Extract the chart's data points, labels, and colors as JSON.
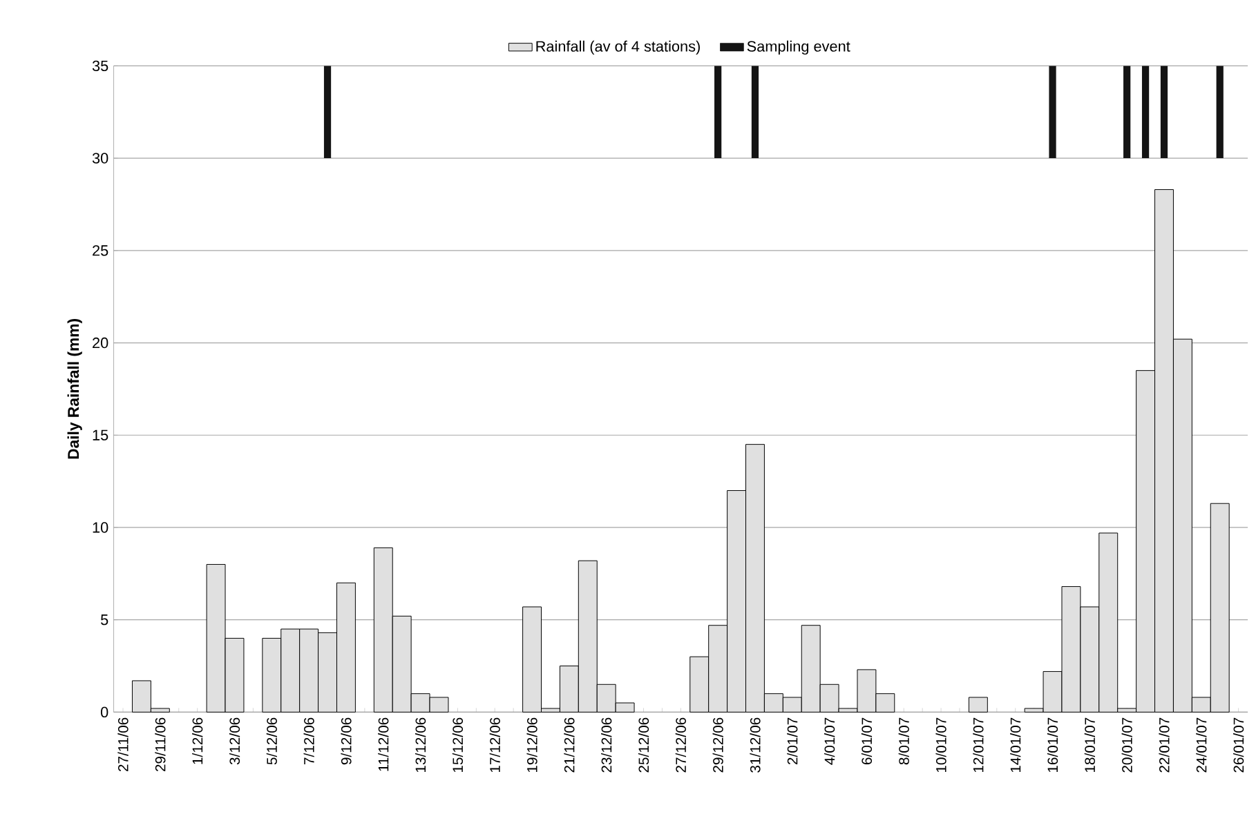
{
  "chart_data": {
    "type": "bar",
    "ylabel": "Daily Rainfall (mm)",
    "categories": [
      "27/11/06",
      null,
      "29/11/06",
      null,
      "1/12/06",
      null,
      "3/12/06",
      null,
      "5/12/06",
      null,
      "7/12/06",
      null,
      "9/12/06",
      null,
      "11/12/06",
      null,
      "13/12/06",
      null,
      "15/12/06",
      null,
      "17/12/06",
      null,
      "19/12/06",
      null,
      "21/12/06",
      null,
      "23/12/06",
      null,
      "25/12/06",
      null,
      "27/12/06",
      null,
      "29/12/06",
      null,
      "31/12/06",
      null,
      "2/01/07",
      null,
      "4/01/07",
      null,
      "6/01/07",
      null,
      "8/01/07",
      null,
      "10/01/07",
      null,
      "12/01/07",
      null,
      "14/01/07",
      null,
      "16/01/07",
      null,
      "18/01/07",
      null,
      "20/01/07",
      null,
      "22/01/07",
      null,
      "24/01/07",
      null,
      "26/01/07"
    ],
    "series": [
      {
        "name": "Rainfall (av of 4 stations)",
        "color": "#e0e0e0",
        "values": [
          0,
          1.7,
          0.2,
          0,
          0,
          8.0,
          4.0,
          0,
          4.0,
          4.5,
          4.5,
          4.3,
          7.0,
          0,
          8.9,
          5.2,
          1.0,
          0.8,
          0,
          0,
          0,
          0,
          5.7,
          0.2,
          2.5,
          8.2,
          1.5,
          0.5,
          0,
          0,
          0,
          3.0,
          4.7,
          12.0,
          14.5,
          1.0,
          0.8,
          4.7,
          1.5,
          0.2,
          2.3,
          1.0,
          0,
          0,
          0,
          0,
          0.8,
          0,
          0,
          0.2,
          2.2,
          6.8,
          5.7,
          9.7,
          0.2,
          18.5,
          28.3,
          20.2,
          0.8,
          11.3,
          0
        ]
      },
      {
        "name": "Sampling event",
        "color": "#141414",
        "base": [
          null,
          null,
          null,
          null,
          null,
          null,
          null,
          null,
          null,
          null,
          null,
          30,
          null,
          null,
          null,
          null,
          null,
          null,
          null,
          null,
          null,
          null,
          null,
          null,
          null,
          null,
          null,
          null,
          null,
          null,
          null,
          null,
          30,
          null,
          30,
          null,
          null,
          null,
          null,
          null,
          null,
          null,
          null,
          null,
          null,
          null,
          null,
          null,
          null,
          null,
          30,
          null,
          null,
          null,
          30,
          30,
          30,
          null,
          null,
          30,
          null
        ],
        "values": [
          null,
          null,
          null,
          null,
          null,
          null,
          null,
          null,
          null,
          null,
          null,
          5,
          null,
          null,
          null,
          null,
          null,
          null,
          null,
          null,
          null,
          null,
          null,
          null,
          null,
          null,
          null,
          null,
          null,
          null,
          null,
          null,
          5,
          null,
          5,
          null,
          null,
          null,
          null,
          null,
          null,
          null,
          null,
          null,
          null,
          null,
          null,
          null,
          null,
          null,
          5,
          null,
          null,
          null,
          5,
          5,
          5,
          null,
          null,
          5,
          null
        ]
      }
    ],
    "ylim": [
      0,
      35
    ],
    "yticks": [
      0,
      5,
      10,
      15,
      20,
      25,
      30,
      35
    ],
    "grid": "y",
    "legend": "top"
  }
}
